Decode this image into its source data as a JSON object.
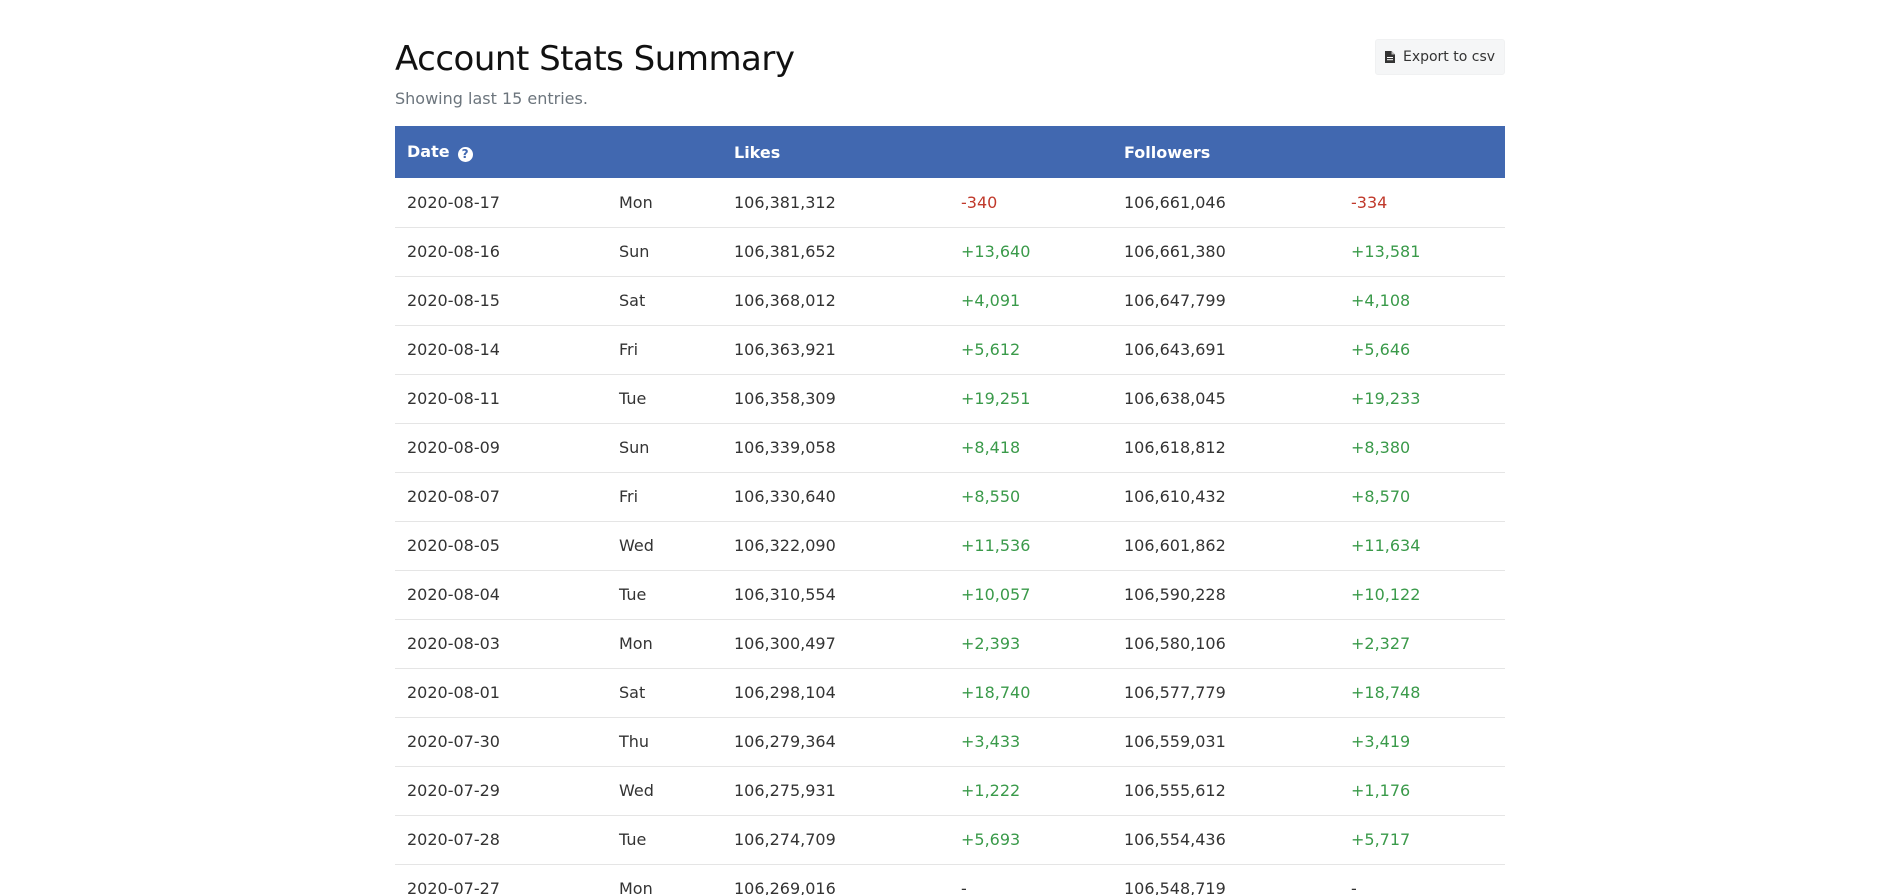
{
  "header": {
    "title": "Account Stats Summary",
    "subtitle": "Showing last 15 entries.",
    "export_label": "Export to csv"
  },
  "table": {
    "columns": {
      "date": "Date",
      "likes": "Likes",
      "followers": "Followers"
    },
    "rows": [
      {
        "date": "2020-08-17",
        "day": "Mon",
        "likes": "106,381,312",
        "likes_change": "-340",
        "followers": "106,661,046",
        "followers_change": "-334"
      },
      {
        "date": "2020-08-16",
        "day": "Sun",
        "likes": "106,381,652",
        "likes_change": "+13,640",
        "followers": "106,661,380",
        "followers_change": "+13,581"
      },
      {
        "date": "2020-08-15",
        "day": "Sat",
        "likes": "106,368,012",
        "likes_change": "+4,091",
        "followers": "106,647,799",
        "followers_change": "+4,108"
      },
      {
        "date": "2020-08-14",
        "day": "Fri",
        "likes": "106,363,921",
        "likes_change": "+5,612",
        "followers": "106,643,691",
        "followers_change": "+5,646"
      },
      {
        "date": "2020-08-11",
        "day": "Tue",
        "likes": "106,358,309",
        "likes_change": "+19,251",
        "followers": "106,638,045",
        "followers_change": "+19,233"
      },
      {
        "date": "2020-08-09",
        "day": "Sun",
        "likes": "106,339,058",
        "likes_change": "+8,418",
        "followers": "106,618,812",
        "followers_change": "+8,380"
      },
      {
        "date": "2020-08-07",
        "day": "Fri",
        "likes": "106,330,640",
        "likes_change": "+8,550",
        "followers": "106,610,432",
        "followers_change": "+8,570"
      },
      {
        "date": "2020-08-05",
        "day": "Wed",
        "likes": "106,322,090",
        "likes_change": "+11,536",
        "followers": "106,601,862",
        "followers_change": "+11,634"
      },
      {
        "date": "2020-08-04",
        "day": "Tue",
        "likes": "106,310,554",
        "likes_change": "+10,057",
        "followers": "106,590,228",
        "followers_change": "+10,122"
      },
      {
        "date": "2020-08-03",
        "day": "Mon",
        "likes": "106,300,497",
        "likes_change": "+2,393",
        "followers": "106,580,106",
        "followers_change": "+2,327"
      },
      {
        "date": "2020-08-01",
        "day": "Sat",
        "likes": "106,298,104",
        "likes_change": "+18,740",
        "followers": "106,577,779",
        "followers_change": "+18,748"
      },
      {
        "date": "2020-07-30",
        "day": "Thu",
        "likes": "106,279,364",
        "likes_change": "+3,433",
        "followers": "106,559,031",
        "followers_change": "+3,419"
      },
      {
        "date": "2020-07-29",
        "day": "Wed",
        "likes": "106,275,931",
        "likes_change": "+1,222",
        "followers": "106,555,612",
        "followers_change": "+1,176"
      },
      {
        "date": "2020-07-28",
        "day": "Tue",
        "likes": "106,274,709",
        "likes_change": "+5,693",
        "followers": "106,554,436",
        "followers_change": "+5,717"
      },
      {
        "date": "2020-07-27",
        "day": "Mon",
        "likes": "106,269,016",
        "likes_change": "-",
        "followers": "106,548,719",
        "followers_change": "-"
      }
    ]
  },
  "colors": {
    "header_bg": "#4168b0",
    "positive": "#3a9a4a",
    "negative": "#c0392b"
  },
  "icons": {
    "help": "question-circle-icon",
    "export": "file-icon"
  }
}
